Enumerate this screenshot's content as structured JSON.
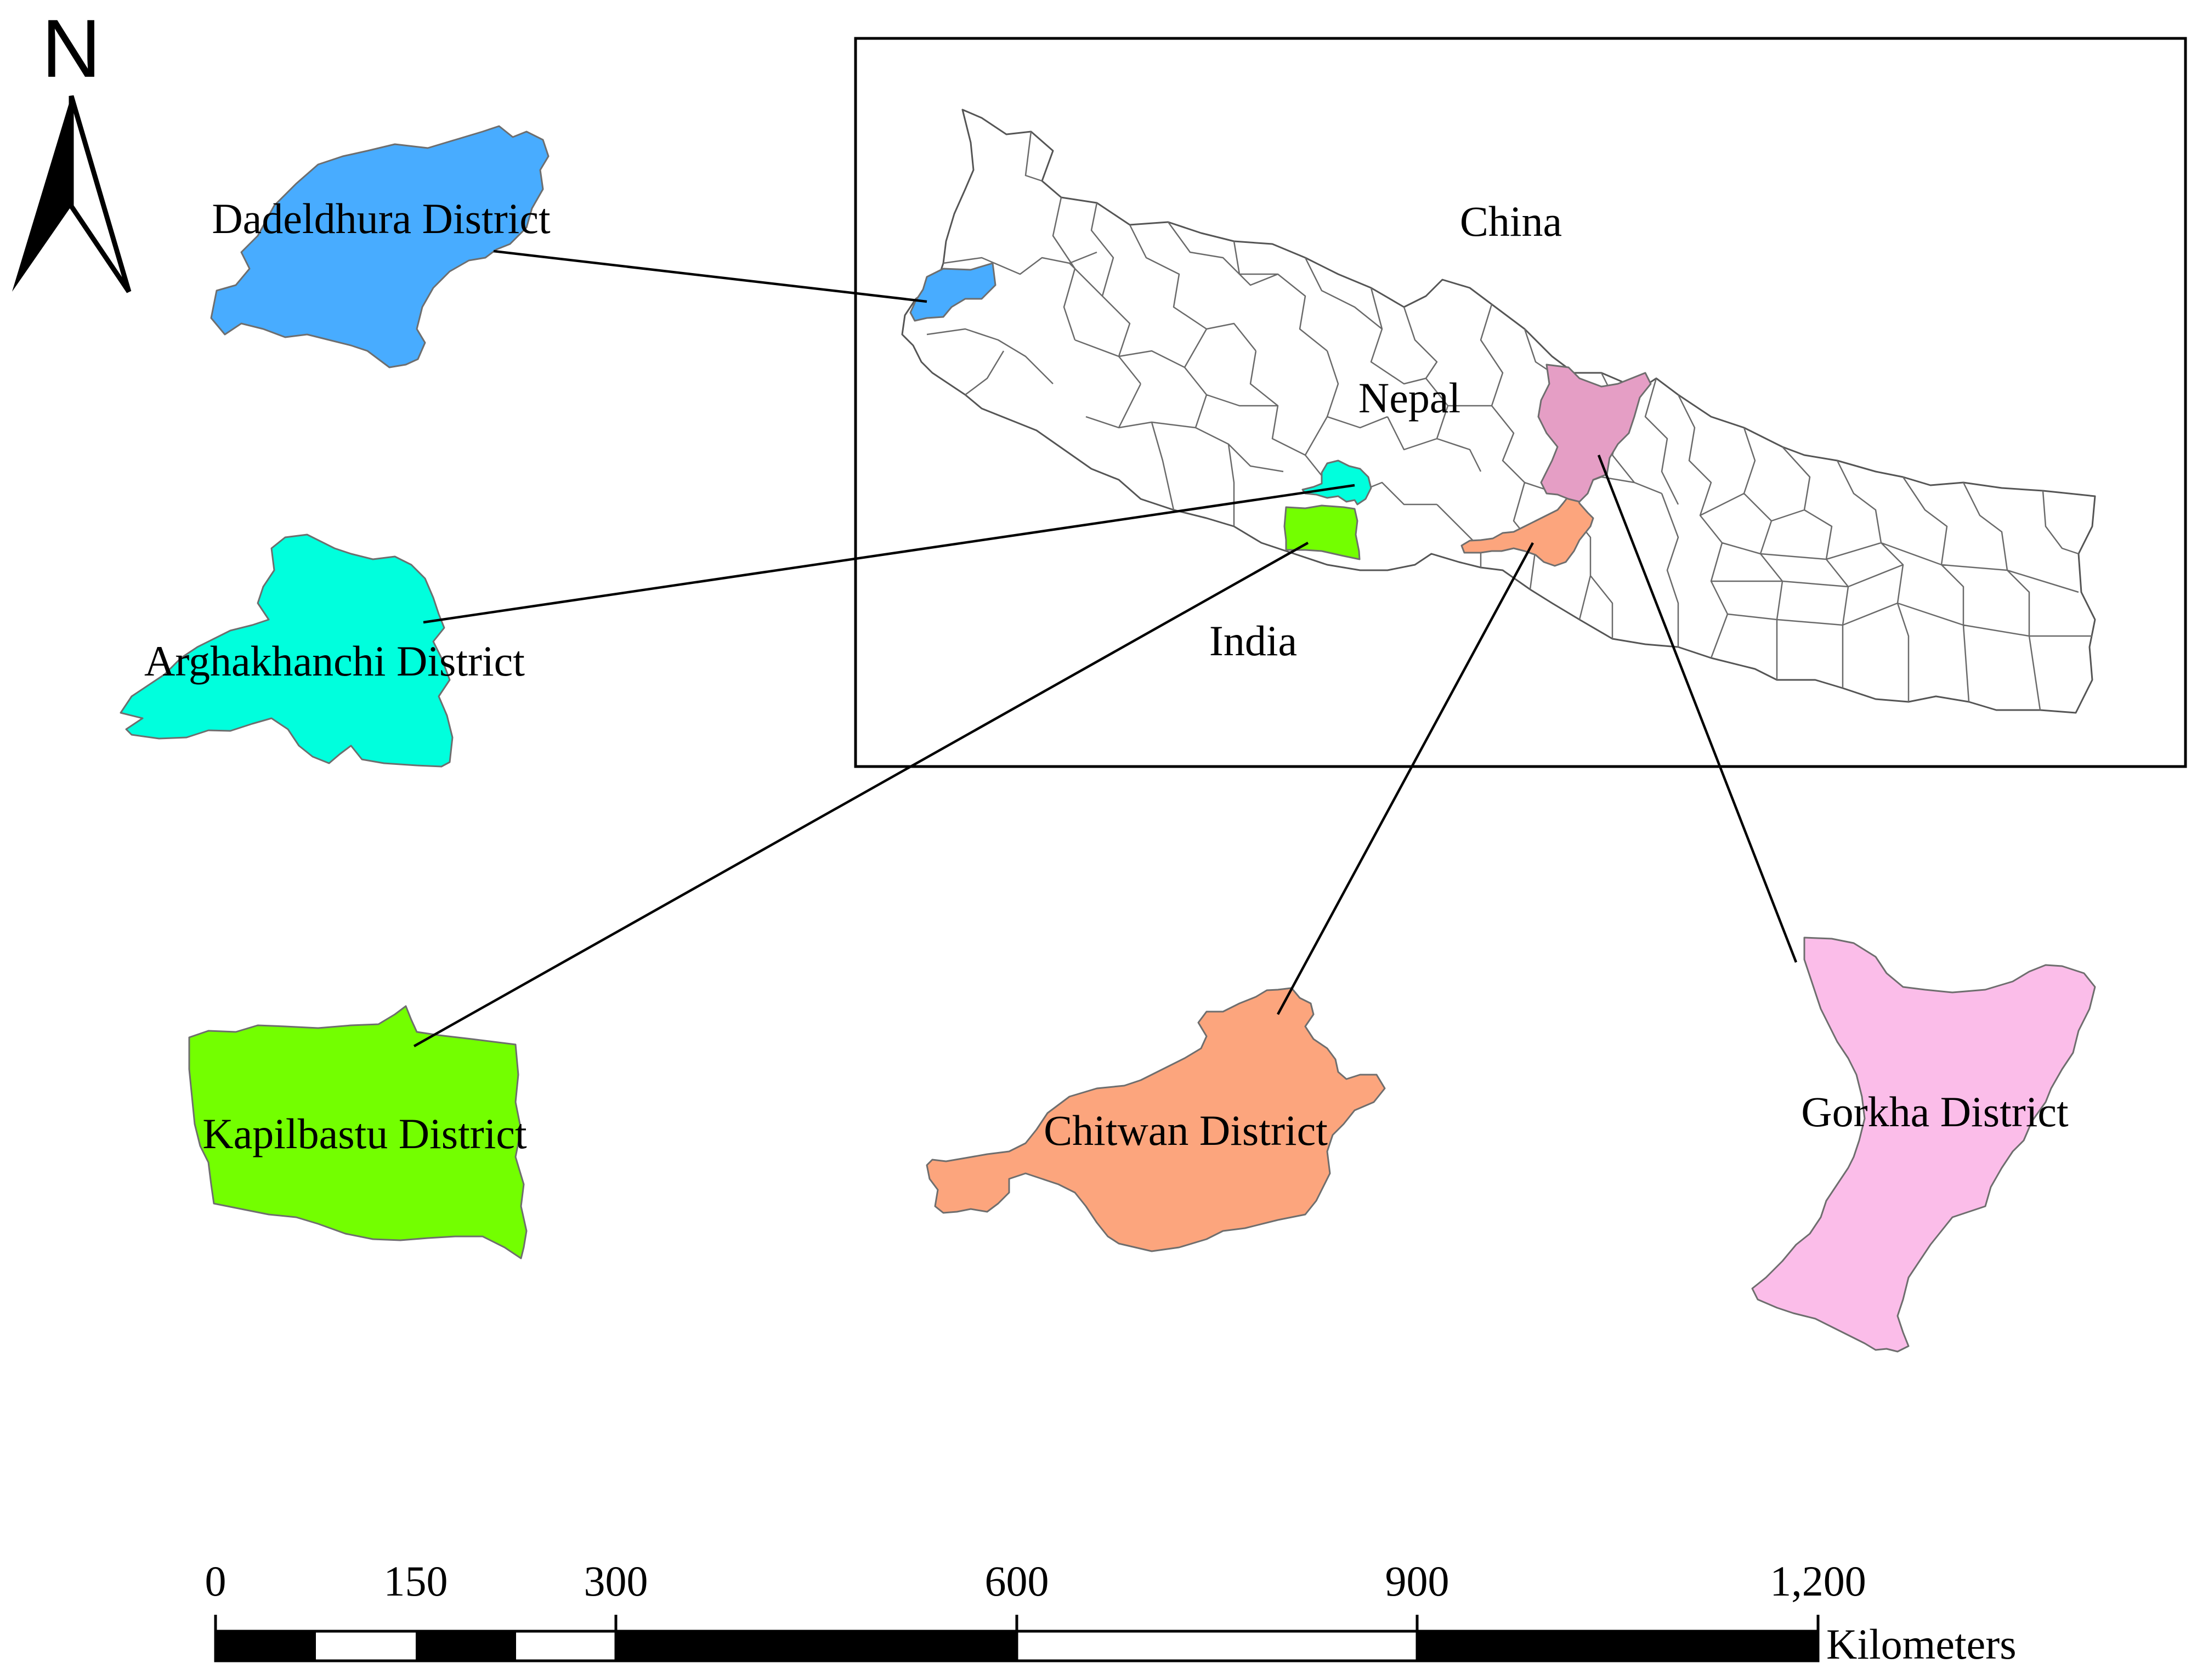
{
  "north_arrow": {
    "label": "N"
  },
  "countries": {
    "china": "China",
    "nepal": "Nepal",
    "india": "India"
  },
  "districts": {
    "dadeldhura": {
      "label": "Dadeldhura District",
      "color": "#48acff"
    },
    "arghakhanchi": {
      "label": "Arghakhanchi District",
      "color": "#00ffdd"
    },
    "kapilbastu": {
      "label": "Kapilbastu District",
      "color": "#73ff00"
    },
    "chitwan": {
      "label": "Chitwan District",
      "color": "#fca57d"
    },
    "gorkha": {
      "label": "Gorkha District",
      "color": "#fbbde9"
    }
  },
  "inset_gorkha_color": "#e59ec5",
  "scale_bar": {
    "ticks": [
      "0",
      "150",
      "300",
      "600",
      "900",
      "1,200"
    ],
    "unit": "Kilometers"
  }
}
